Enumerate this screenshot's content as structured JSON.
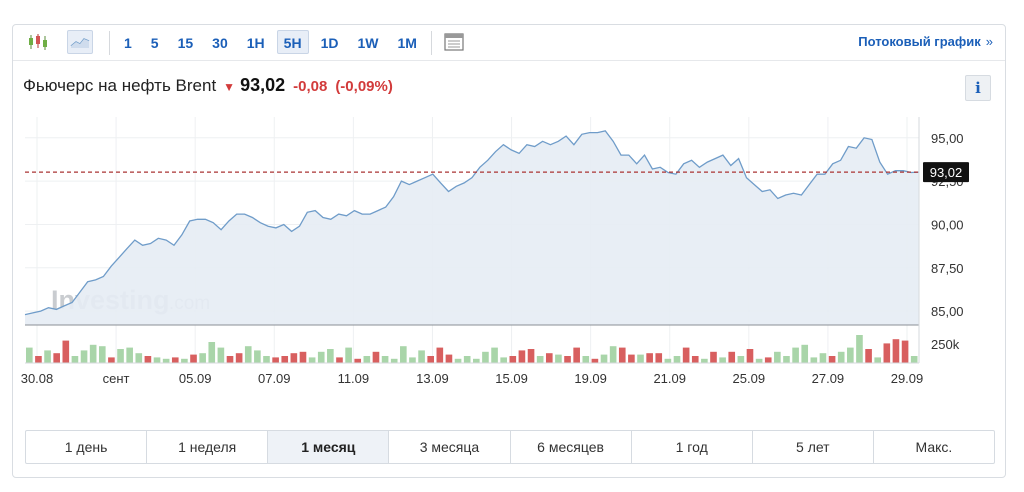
{
  "toolbar": {
    "intervals": [
      {
        "label": "1",
        "active": false
      },
      {
        "label": "5",
        "active": false
      },
      {
        "label": "15",
        "active": false
      },
      {
        "label": "30",
        "active": false
      },
      {
        "label": "1H",
        "active": false
      },
      {
        "label": "5H",
        "active": true
      },
      {
        "label": "1D",
        "active": false
      },
      {
        "label": "1W",
        "active": false
      },
      {
        "label": "1M",
        "active": false
      }
    ],
    "streaming_label": "Потоковый график",
    "streaming_chevron": "»"
  },
  "header": {
    "title": "Фьючерс на нефть Brent",
    "direction_arrow": "▼",
    "last": "93,02",
    "change": "-0,08",
    "change_pct": "(-0,09%)",
    "info": "i"
  },
  "colors": {
    "accent": "#1b5fb8",
    "negative": "#d23b3b",
    "line": "#6f9cc9",
    "area": "#e6ecf4",
    "vol_up": "#a9d5a9",
    "vol_down": "#d85f5f"
  },
  "chart_data": {
    "type": "area",
    "x_ticks": [
      "30.08",
      "сент",
      "05.09",
      "07.09",
      "11.09",
      "13.09",
      "15.09",
      "19.09",
      "21.09",
      "25.09",
      "27.09",
      "29.09"
    ],
    "y_ticks": [
      "95,00",
      "92,50",
      "90,00",
      "87,50",
      "85,00"
    ],
    "ylim": [
      84.2,
      96.2
    ],
    "last_price": 93.02,
    "last_price_label": "93,02",
    "watermark_brand": "Investing",
    "watermark_domain": ".com",
    "volume_label": "250k",
    "grid": true,
    "values": [
      84.8,
      84.9,
      85.0,
      85.2,
      85.1,
      85.3,
      85.5,
      86.1,
      86.7,
      86.8,
      87.0,
      87.6,
      88.1,
      88.6,
      89.1,
      88.8,
      88.9,
      89.2,
      89.1,
      88.8,
      89.4,
      90.2,
      90.3,
      90.3,
      90.1,
      89.7,
      90.2,
      90.6,
      90.6,
      90.4,
      90.1,
      89.9,
      89.8,
      90.0,
      89.6,
      89.9,
      90.7,
      90.8,
      90.4,
      90.3,
      90.6,
      90.5,
      90.8,
      90.6,
      90.6,
      90.8,
      91.0,
      91.6,
      92.5,
      92.3,
      92.5,
      92.7,
      92.9,
      92.4,
      91.9,
      92.2,
      92.4,
      92.7,
      93.3,
      93.7,
      94.2,
      94.6,
      94.3,
      94.1,
      94.6,
      94.5,
      94.8,
      94.6,
      94.8,
      95.1,
      94.6,
      95.2,
      95.3,
      95.3,
      95.4,
      94.8,
      94.0,
      94.0,
      93.5,
      94.0,
      93.2,
      93.3,
      93.0,
      92.9,
      93.5,
      93.7,
      93.3,
      93.6,
      93.8,
      94.0,
      93.4,
      93.8,
      92.7,
      92.3,
      91.9,
      92.0,
      91.5,
      91.7,
      91.8,
      91.7,
      92.3,
      92.9,
      92.9,
      93.5,
      93.7,
      94.5,
      94.4,
      95.0,
      94.9,
      93.6,
      92.9,
      93.1,
      93.1,
      93.0,
      93.02
    ],
    "volume": [
      {
        "v": 0.55,
        "up": true
      },
      {
        "v": 0.25,
        "up": false
      },
      {
        "v": 0.45,
        "up": true
      },
      {
        "v": 0.35,
        "up": false
      },
      {
        "v": 0.8,
        "up": false
      },
      {
        "v": 0.25,
        "up": true
      },
      {
        "v": 0.45,
        "up": true
      },
      {
        "v": 0.65,
        "up": true
      },
      {
        "v": 0.6,
        "up": true
      },
      {
        "v": 0.2,
        "up": false
      },
      {
        "v": 0.5,
        "up": true
      },
      {
        "v": 0.55,
        "up": true
      },
      {
        "v": 0.35,
        "up": true
      },
      {
        "v": 0.25,
        "up": false
      },
      {
        "v": 0.2,
        "up": true
      },
      {
        "v": 0.15,
        "up": true
      },
      {
        "v": 0.2,
        "up": false
      },
      {
        "v": 0.15,
        "up": true
      },
      {
        "v": 0.3,
        "up": false
      },
      {
        "v": 0.35,
        "up": true
      },
      {
        "v": 0.75,
        "up": true
      },
      {
        "v": 0.55,
        "up": true
      },
      {
        "v": 0.25,
        "up": false
      },
      {
        "v": 0.35,
        "up": false
      },
      {
        "v": 0.6,
        "up": true
      },
      {
        "v": 0.45,
        "up": true
      },
      {
        "v": 0.25,
        "up": true
      },
      {
        "v": 0.2,
        "up": false
      },
      {
        "v": 0.25,
        "up": false
      },
      {
        "v": 0.35,
        "up": false
      },
      {
        "v": 0.4,
        "up": false
      },
      {
        "v": 0.2,
        "up": true
      },
      {
        "v": 0.4,
        "up": true
      },
      {
        "v": 0.5,
        "up": true
      },
      {
        "v": 0.2,
        "up": false
      },
      {
        "v": 0.55,
        "up": true
      },
      {
        "v": 0.15,
        "up": false
      },
      {
        "v": 0.25,
        "up": true
      },
      {
        "v": 0.4,
        "up": false
      },
      {
        "v": 0.25,
        "up": true
      },
      {
        "v": 0.15,
        "up": true
      },
      {
        "v": 0.6,
        "up": true
      },
      {
        "v": 0.2,
        "up": true
      },
      {
        "v": 0.45,
        "up": true
      },
      {
        "v": 0.25,
        "up": false
      },
      {
        "v": 0.55,
        "up": false
      },
      {
        "v": 0.3,
        "up": false
      },
      {
        "v": 0.15,
        "up": true
      },
      {
        "v": 0.25,
        "up": true
      },
      {
        "v": 0.15,
        "up": true
      },
      {
        "v": 0.4,
        "up": true
      },
      {
        "v": 0.55,
        "up": true
      },
      {
        "v": 0.2,
        "up": true
      },
      {
        "v": 0.25,
        "up": false
      },
      {
        "v": 0.45,
        "up": false
      },
      {
        "v": 0.5,
        "up": false
      },
      {
        "v": 0.25,
        "up": true
      },
      {
        "v": 0.35,
        "up": false
      },
      {
        "v": 0.3,
        "up": true
      },
      {
        "v": 0.25,
        "up": false
      },
      {
        "v": 0.55,
        "up": false
      },
      {
        "v": 0.25,
        "up": true
      },
      {
        "v": 0.15,
        "up": false
      },
      {
        "v": 0.3,
        "up": true
      },
      {
        "v": 0.6,
        "up": true
      },
      {
        "v": 0.55,
        "up": false
      },
      {
        "v": 0.3,
        "up": false
      },
      {
        "v": 0.3,
        "up": true
      },
      {
        "v": 0.35,
        "up": false
      },
      {
        "v": 0.35,
        "up": false
      },
      {
        "v": 0.15,
        "up": true
      },
      {
        "v": 0.25,
        "up": true
      },
      {
        "v": 0.55,
        "up": false
      },
      {
        "v": 0.25,
        "up": false
      },
      {
        "v": 0.15,
        "up": true
      },
      {
        "v": 0.4,
        "up": false
      },
      {
        "v": 0.2,
        "up": true
      },
      {
        "v": 0.4,
        "up": false
      },
      {
        "v": 0.25,
        "up": true
      },
      {
        "v": 0.5,
        "up": false
      },
      {
        "v": 0.15,
        "up": true
      },
      {
        "v": 0.2,
        "up": false
      },
      {
        "v": 0.4,
        "up": true
      },
      {
        "v": 0.25,
        "up": true
      },
      {
        "v": 0.55,
        "up": true
      },
      {
        "v": 0.65,
        "up": true
      },
      {
        "v": 0.2,
        "up": true
      },
      {
        "v": 0.35,
        "up": true
      },
      {
        "v": 0.25,
        "up": false
      },
      {
        "v": 0.4,
        "up": true
      },
      {
        "v": 0.55,
        "up": true
      },
      {
        "v": 1.0,
        "up": true
      },
      {
        "v": 0.5,
        "up": false
      },
      {
        "v": 0.2,
        "up": true
      },
      {
        "v": 0.7,
        "up": false
      },
      {
        "v": 0.85,
        "up": false
      },
      {
        "v": 0.8,
        "up": false
      },
      {
        "v": 0.25,
        "up": true
      }
    ]
  },
  "periods": [
    {
      "label": "1 день",
      "active": false
    },
    {
      "label": "1 неделя",
      "active": false
    },
    {
      "label": "1 месяц",
      "active": true
    },
    {
      "label": "3 месяца",
      "active": false
    },
    {
      "label": "6 месяцев",
      "active": false
    },
    {
      "label": "1 год",
      "active": false
    },
    {
      "label": "5 лет",
      "active": false
    },
    {
      "label": "Макс.",
      "active": false
    }
  ]
}
